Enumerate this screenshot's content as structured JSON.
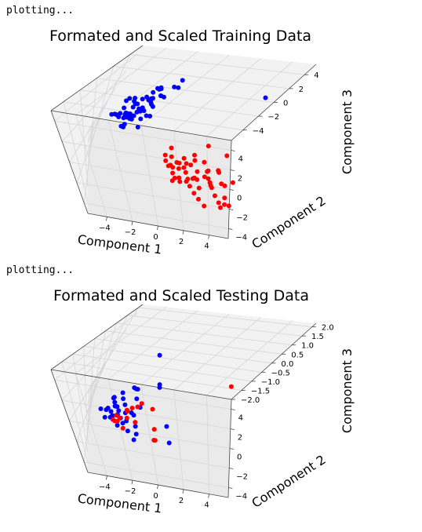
{
  "output_log": [
    "plotting...",
    "plotting..."
  ],
  "colors": {
    "class_a": "#0000ff",
    "class_b": "#ff0000"
  },
  "chart_data": [
    {
      "type": "scatter",
      "projection": "3d",
      "title": "Formated and Scaled Training Data",
      "xlabel": "Component 1",
      "ylabel": "Component 2",
      "zlabel": "Component 3",
      "xlim": [
        -5.5,
        5.5
      ],
      "ylim": [
        -5,
        5
      ],
      "zlim": [
        -5.5,
        5.5
      ],
      "x_ticks": [
        "−4",
        "−2",
        "0",
        "2",
        "4"
      ],
      "y_ticks": [
        "−4",
        "−2",
        "0",
        "2",
        "4"
      ],
      "z_ticks": [
        "−4",
        "−2",
        "0",
        "2",
        "4"
      ],
      "grid": true,
      "series": [
        {
          "color": "#0000ff",
          "points": [
            [
              -2.8,
              1.2,
              1.8
            ],
            [
              -3.2,
              0.8,
              0.6
            ],
            [
              -2.5,
              1.8,
              2.5
            ],
            [
              -3.5,
              0.5,
              -0.2
            ],
            [
              -2.9,
              1.5,
              1.2
            ],
            [
              -3.1,
              2.2,
              0.4
            ],
            [
              -2.6,
              0.9,
              3.1
            ],
            [
              -3.3,
              1.7,
              -0.6
            ],
            [
              -2.4,
              2.5,
              1.5
            ],
            [
              -3.6,
              1.1,
              0.9
            ],
            [
              -2.7,
              0.6,
              2.2
            ],
            [
              -3.0,
              2.0,
              -0.3
            ],
            [
              -2.2,
              1.4,
              3.5
            ],
            [
              -3.4,
              0.3,
              1.6
            ],
            [
              -2.9,
              2.8,
              0.1
            ],
            [
              -3.7,
              1.9,
              0.5
            ],
            [
              -2.3,
              0.7,
              2.8
            ],
            [
              -3.1,
              1.3,
              -0.9
            ],
            [
              -2.8,
              2.3,
              1.9
            ],
            [
              -3.5,
              0.9,
              1.1
            ],
            [
              -2.5,
              1.6,
              4.2
            ],
            [
              -3.2,
              2.6,
              0.7
            ],
            [
              -2.6,
              0.4,
              1.3
            ],
            [
              -3.8,
              1.5,
              0.2
            ],
            [
              -2.1,
              2.1,
              2.6
            ],
            [
              -3.3,
              0.6,
              -0.4
            ],
            [
              -2.7,
              1.9,
              3.8
            ],
            [
              -3.0,
              1.0,
              0.3
            ],
            [
              -2.4,
              2.7,
              1.0
            ],
            [
              -3.6,
              1.8,
              -0.7
            ],
            [
              -2.9,
              0.8,
              4.6
            ],
            [
              -3.4,
              2.4,
              1.4
            ],
            [
              -2.2,
              1.2,
              0.8
            ],
            [
              -3.1,
              0.5,
              2.0
            ],
            [
              -2.8,
              1.7,
              -0.1
            ],
            [
              -3.5,
              2.9,
              0.6
            ],
            [
              -2.6,
              1.1,
              5.0
            ],
            [
              -3.2,
              1.6,
              1.7
            ],
            [
              -2.3,
              0.9,
              -0.5
            ],
            [
              -3.7,
              0.7,
              1.2
            ],
            [
              -2.5,
              2.2,
              3.3
            ],
            [
              -3.0,
              1.4,
              0.0
            ],
            [
              -1.8,
              1.5,
              4.8
            ],
            [
              -2.0,
              1.0,
              3.9
            ],
            [
              -1.6,
              2.0,
              5.2
            ],
            [
              -4.2,
              1.2,
              0.4
            ],
            [
              -3.9,
              1.7,
              -0.3
            ],
            [
              -4.5,
              0.8,
              0.8
            ],
            [
              -2.4,
              1.3,
              2.3
            ],
            [
              -3.0,
              2.1,
              1.8
            ],
            [
              -2.7,
              1.5,
              0.9
            ],
            [
              -3.3,
              1.2,
              0.2
            ],
            [
              4.3,
              1.8,
              4.6
            ],
            [
              -1.5,
              1.8,
              4.4
            ],
            [
              -3.8,
              2.3,
              1.0
            ],
            [
              -2.1,
              0.6,
              1.6
            ]
          ]
        },
        {
          "color": "#ff0000",
          "points": [
            [
              0.5,
              -0.8,
              -1.5
            ],
            [
              1.2,
              -1.5,
              -2.0
            ],
            [
              2.0,
              -0.5,
              -1.2
            ],
            [
              0.8,
              -2.2,
              -1.8
            ],
            [
              1.6,
              -1.0,
              -2.4
            ],
            [
              2.5,
              -1.8,
              -1.6
            ],
            [
              0.3,
              -0.3,
              -1.0
            ],
            [
              1.9,
              -2.5,
              -2.2
            ],
            [
              2.8,
              -0.9,
              -1.4
            ],
            [
              1.1,
              -1.9,
              -2.8
            ],
            [
              3.2,
              -1.4,
              -1.9
            ],
            [
              0.6,
              -1.2,
              -2.1
            ],
            [
              2.3,
              -2.8,
              -1.3
            ],
            [
              3.6,
              -2.0,
              -2.5
            ],
            [
              1.4,
              -0.6,
              -1.7
            ],
            [
              2.9,
              -3.1,
              -2.0
            ],
            [
              4.0,
              -1.6,
              -1.5
            ],
            [
              0.9,
              -2.6,
              -2.3
            ],
            [
              3.4,
              -2.7,
              -1.1
            ],
            [
              1.8,
              -1.3,
              -2.6
            ],
            [
              4.4,
              -2.3,
              -2.0
            ],
            [
              2.6,
              -3.4,
              -2.4
            ],
            [
              0.4,
              -1.7,
              -1.6
            ],
            [
              3.8,
              -3.0,
              -1.8
            ],
            [
              1.5,
              -2.1,
              -2.9
            ],
            [
              4.7,
              -2.9,
              -1.4
            ],
            [
              2.1,
              -1.1,
              -1.1
            ],
            [
              3.0,
              -3.7,
              -2.7
            ],
            [
              4.9,
              -3.5,
              -2.2
            ],
            [
              1.0,
              -0.9,
              -2.0
            ],
            [
              2.4,
              -2.4,
              -1.7
            ],
            [
              3.3,
              -1.0,
              -2.3
            ],
            [
              0.7,
              -2.0,
              -1.3
            ],
            [
              2.7,
              -1.6,
              -2.9
            ],
            [
              4.2,
              -3.9,
              -1.6
            ],
            [
              3.7,
              -2.2,
              -2.6
            ],
            [
              1.3,
              -2.8,
              -1.5
            ],
            [
              5.0,
              -4.0,
              -2.4
            ],
            [
              0.2,
              -1.0,
              -1.9
            ],
            [
              2.2,
              -3.0,
              -2.1
            ],
            [
              3.9,
              -1.8,
              -1.0
            ],
            [
              4.6,
              -4.3,
              -1.9
            ],
            [
              1.7,
              -0.7,
              -2.2
            ],
            [
              3.1,
              -2.5,
              -1.2
            ],
            [
              2.0,
              -2.0,
              -2.5
            ],
            [
              1.1,
              -1.4,
              -1.4
            ],
            [
              5.2,
              -2.6,
              -1.2
            ],
            [
              4.8,
              -4.6,
              -2.1
            ],
            [
              3.5,
              -4.2,
              -2.8
            ],
            [
              2.6,
              -1.2,
              1.2
            ],
            [
              4.1,
              -0.8,
              -0.2
            ],
            [
              5.3,
              -3.3,
              -3.4
            ],
            [
              0.1,
              -0.5,
              -1.8
            ],
            [
              1.9,
              -1.7,
              -1.0
            ]
          ]
        }
      ]
    },
    {
      "type": "scatter",
      "projection": "3d",
      "title": "Formated and Scaled Testing Data",
      "xlabel": "Component 1",
      "ylabel": "Component 2",
      "zlabel": "Component 3",
      "xlim": [
        -5.5,
        5.5
      ],
      "ylim": [
        -5,
        5
      ],
      "zlim": [
        -2.0,
        2.2
      ],
      "x_ticks": [
        "−4",
        "−2",
        "0",
        "2",
        "4"
      ],
      "y_ticks": [
        "−4",
        "−2",
        "0",
        "2",
        "4"
      ],
      "z_ticks": [
        "−2.0",
        "−1.5",
        "−1.0",
        "−0.5",
        "0.0",
        "0.5",
        "1.0",
        "1.5",
        "2.0"
      ],
      "grid": true,
      "series": [
        {
          "color": "#0000ff",
          "points": [
            [
              -2.3,
              1.0,
              1.6
            ],
            [
              -1.2,
              0.0,
              0.6
            ],
            [
              -1.0,
              0.5,
              0.2
            ],
            [
              -2.2,
              0.8,
              -0.2
            ],
            [
              -2.0,
              0.4,
              -0.5
            ],
            [
              -2.8,
              1.2,
              -0.7
            ],
            [
              -2.6,
              1.0,
              -0.9
            ],
            [
              -2.4,
              0.6,
              -1.0
            ],
            [
              -3.0,
              1.4,
              -1.1
            ],
            [
              -2.9,
              1.1,
              -1.2
            ],
            [
              -2.7,
              0.9,
              -1.3
            ],
            [
              -2.5,
              0.7,
              -1.4
            ],
            [
              -3.1,
              1.0,
              -1.5
            ],
            [
              -2.8,
              0.5,
              -1.6
            ],
            [
              -2.3,
              0.9,
              -1.7
            ],
            [
              -2.6,
              1.3,
              -1.8
            ],
            [
              -3.0,
              0.8,
              -1.9
            ],
            [
              -2.2,
              0.3,
              -1.95
            ],
            [
              -2.5,
              1.1,
              -2.0
            ],
            [
              -3.2,
              1.5,
              -1.85
            ],
            [
              -2.0,
              0.2,
              -1.75
            ],
            [
              -2.7,
              0.6,
              -1.65
            ],
            [
              -2.4,
              1.4,
              -1.55
            ],
            [
              -3.3,
              0.7,
              -1.45
            ],
            [
              -2.1,
              0.5,
              -1.35
            ],
            [
              -1.5,
              0.9,
              -1.95
            ],
            [
              -1.8,
              1.2,
              -2.0
            ],
            [
              1.3,
              -0.5,
              -2.0
            ],
            [
              -1.2,
              -0.8,
              -2.0
            ],
            [
              -1.6,
              -0.2,
              -1.9
            ],
            [
              -2.9,
              1.6,
              -1.25
            ],
            [
              -1.3,
              -1.0,
              -1.6
            ],
            [
              -1.4,
              0.7,
              -1.5
            ],
            [
              -2.0,
              1.6,
              -0.6
            ],
            [
              -1.2,
              1.0,
              -1.2
            ],
            [
              -1.0,
              0.4,
              -1.9
            ],
            [
              -3.1,
              0.3,
              -1.0
            ],
            [
              -2.3,
              1.3,
              -0.4
            ],
            [
              0.6,
              -0.5,
              -1.2
            ],
            [
              -1.9,
              0.1,
              -1.1
            ]
          ]
        },
        {
          "color": "#ff0000",
          "points": [
            [
              3.7,
              -1.5,
              1.8
            ],
            [
              -1.7,
              0.2,
              -0.8
            ],
            [
              -1.5,
              0.4,
              -0.7
            ],
            [
              -2.2,
              0.3,
              -1.1
            ],
            [
              -2.0,
              0.6,
              -1.3
            ],
            [
              -2.6,
              0.4,
              -1.5
            ],
            [
              -2.4,
              0.2,
              -1.7
            ],
            [
              -1.8,
              0.5,
              -1.6
            ],
            [
              -2.1,
              0.8,
              -1.8
            ],
            [
              -1.9,
              0.0,
              -1.9
            ],
            [
              -2.3,
              0.7,
              -1.95
            ],
            [
              -0.2,
              -0.8,
              -1.3
            ],
            [
              0.0,
              -1.1,
              -1.7
            ],
            [
              0.2,
              -0.8,
              -1.85
            ],
            [
              -0.8,
              -0.2,
              -0.6
            ],
            [
              -1.7,
              0.9,
              -1.25
            ],
            [
              -2.8,
              0.1,
              -1.6
            ],
            [
              -1.4,
              -0.1,
              -1.45
            ]
          ]
        }
      ]
    }
  ]
}
